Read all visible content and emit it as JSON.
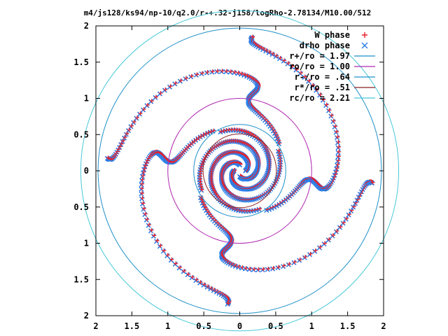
{
  "chart_data": {
    "type": "scatter",
    "title": "m4/js128/ks94/np-10/q2.0/r-+.32-j158/logRho-2.78134/M10.00/512",
    "xlim": [
      -2,
      2
    ],
    "ylim": [
      -2,
      2
    ],
    "x_tick_labels": [
      "2",
      "1.5",
      "1",
      "0.5",
      "0",
      "0.5",
      "1",
      "1.5",
      "2"
    ],
    "y_tick_labels": [
      "2",
      "1.5",
      "1",
      "0.5",
      "0",
      "0.5",
      "1",
      "1.5",
      "2"
    ],
    "grid": false,
    "legend_position": "top-right",
    "series": [
      {
        "name": "W phase",
        "marker": "plus",
        "color": "#e8202a"
      },
      {
        "name": "drho phase",
        "marker": "cross",
        "color": "#2b7fe8"
      }
    ],
    "circles": [
      {
        "label": "r+/ro = 1.97",
        "radius": 1.97,
        "color": "#1e90c8"
      },
      {
        "label": "ro/ro = 1.00",
        "radius": 1.0,
        "color": "#b028b0"
      },
      {
        "label": "r-/ro = .64",
        "radius": 0.64,
        "color": "#1e90c8"
      },
      {
        "label": "r*/ro = .51",
        "radius": 0.51,
        "color": "#8b2020"
      },
      {
        "label": "rc/ro = 2.21",
        "radius": 2.21,
        "color": "#48c8d8"
      }
    ]
  }
}
